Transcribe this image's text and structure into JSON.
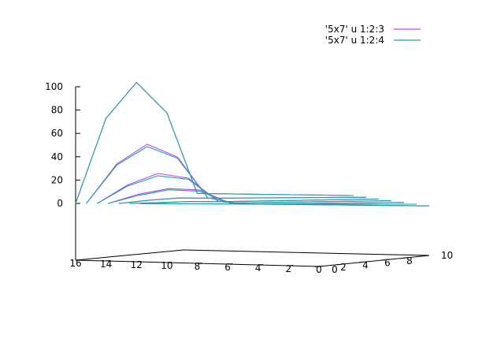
{
  "chart_data": {
    "type": "line",
    "projection": "3d",
    "grid": false,
    "legend_position": "top-right",
    "axes": {
      "x": {
        "range": [
          0,
          16
        ],
        "ticks": [
          "16",
          "14",
          "12",
          "10",
          "8",
          "6",
          "4",
          "2",
          "0"
        ]
      },
      "y": {
        "range": [
          0,
          10
        ],
        "ticks": [
          "0",
          "2",
          "4",
          "6",
          "8",
          "10"
        ]
      },
      "z": {
        "range": [
          0,
          100
        ],
        "ticks": [
          "0",
          "20",
          "40",
          "60",
          "80",
          "100"
        ]
      }
    },
    "series": [
      {
        "name": "'5x7' u 1:2:3",
        "color": "#c040ff",
        "rows": [
          [
            [
              16,
              0,
              0
            ],
            [
              14,
              0,
              73
            ],
            [
              12,
              0,
              104
            ],
            [
              10,
              0,
              78
            ],
            [
              8,
              0,
              9
            ]
          ],
          [
            [
              16,
              1,
              0
            ],
            [
              14,
              1,
              34
            ],
            [
              12,
              1,
              51
            ],
            [
              10,
              1,
              40
            ],
            [
              8,
              1,
              5
            ]
          ],
          [
            [
              16,
              2,
              0
            ],
            [
              14,
              2,
              16
            ],
            [
              12,
              2,
              26
            ],
            [
              10,
              2,
              22
            ],
            [
              8,
              2,
              2
            ]
          ],
          [
            [
              16,
              3,
              0
            ],
            [
              14,
              3,
              8
            ],
            [
              12,
              3,
              13
            ],
            [
              10,
              3,
              12
            ],
            [
              8,
              3,
              1
            ]
          ],
          [
            [
              16,
              4,
              0
            ],
            [
              14,
              4,
              3
            ],
            [
              12,
              4,
              5
            ],
            [
              10,
              4,
              5
            ],
            [
              8,
              4,
              0
            ]
          ],
          [
            [
              16,
              5,
              0
            ],
            [
              14,
              5,
              1
            ],
            [
              12,
              5,
              2
            ],
            [
              10,
              5,
              2
            ],
            [
              8,
              5,
              0
            ]
          ],
          [
            [
              16,
              6,
              0
            ],
            [
              14,
              6,
              0
            ],
            [
              12,
              6,
              0
            ],
            [
              10,
              6,
              0
            ],
            [
              8,
              6,
              0
            ]
          ]
        ]
      },
      {
        "name": "'5x7' u 1:2:4",
        "color": "#20a0a0",
        "rows": [
          [
            [
              16,
              0,
              0
            ],
            [
              14,
              0,
              73
            ],
            [
              12,
              0,
              104
            ],
            [
              10,
              0,
              78
            ],
            [
              8,
              0,
              9
            ]
          ],
          [
            [
              16,
              1,
              0
            ],
            [
              14,
              1,
              33
            ],
            [
              12,
              1,
              49
            ],
            [
              10,
              1,
              39
            ],
            [
              8,
              1,
              5
            ]
          ],
          [
            [
              16,
              2,
              0
            ],
            [
              14,
              2,
              15
            ],
            [
              12,
              2,
              24
            ],
            [
              10,
              2,
              21
            ],
            [
              8,
              2,
              2
            ]
          ],
          [
            [
              16,
              3,
              0
            ],
            [
              14,
              3,
              7
            ],
            [
              12,
              3,
              12
            ],
            [
              10,
              3,
              11
            ],
            [
              8,
              3,
              1
            ]
          ],
          [
            [
              16,
              4,
              0
            ],
            [
              14,
              4,
              3
            ],
            [
              12,
              4,
              5
            ],
            [
              10,
              4,
              5
            ],
            [
              8,
              4,
              0
            ]
          ],
          [
            [
              16,
              5,
              0
            ],
            [
              14,
              5,
              1
            ],
            [
              12,
              5,
              2
            ],
            [
              10,
              5,
              2
            ],
            [
              8,
              5,
              0
            ]
          ],
          [
            [
              16,
              6,
              0
            ],
            [
              14,
              6,
              0
            ],
            [
              12,
              6,
              0
            ],
            [
              10,
              6,
              0
            ],
            [
              8,
              6,
              0
            ]
          ]
        ]
      }
    ]
  }
}
